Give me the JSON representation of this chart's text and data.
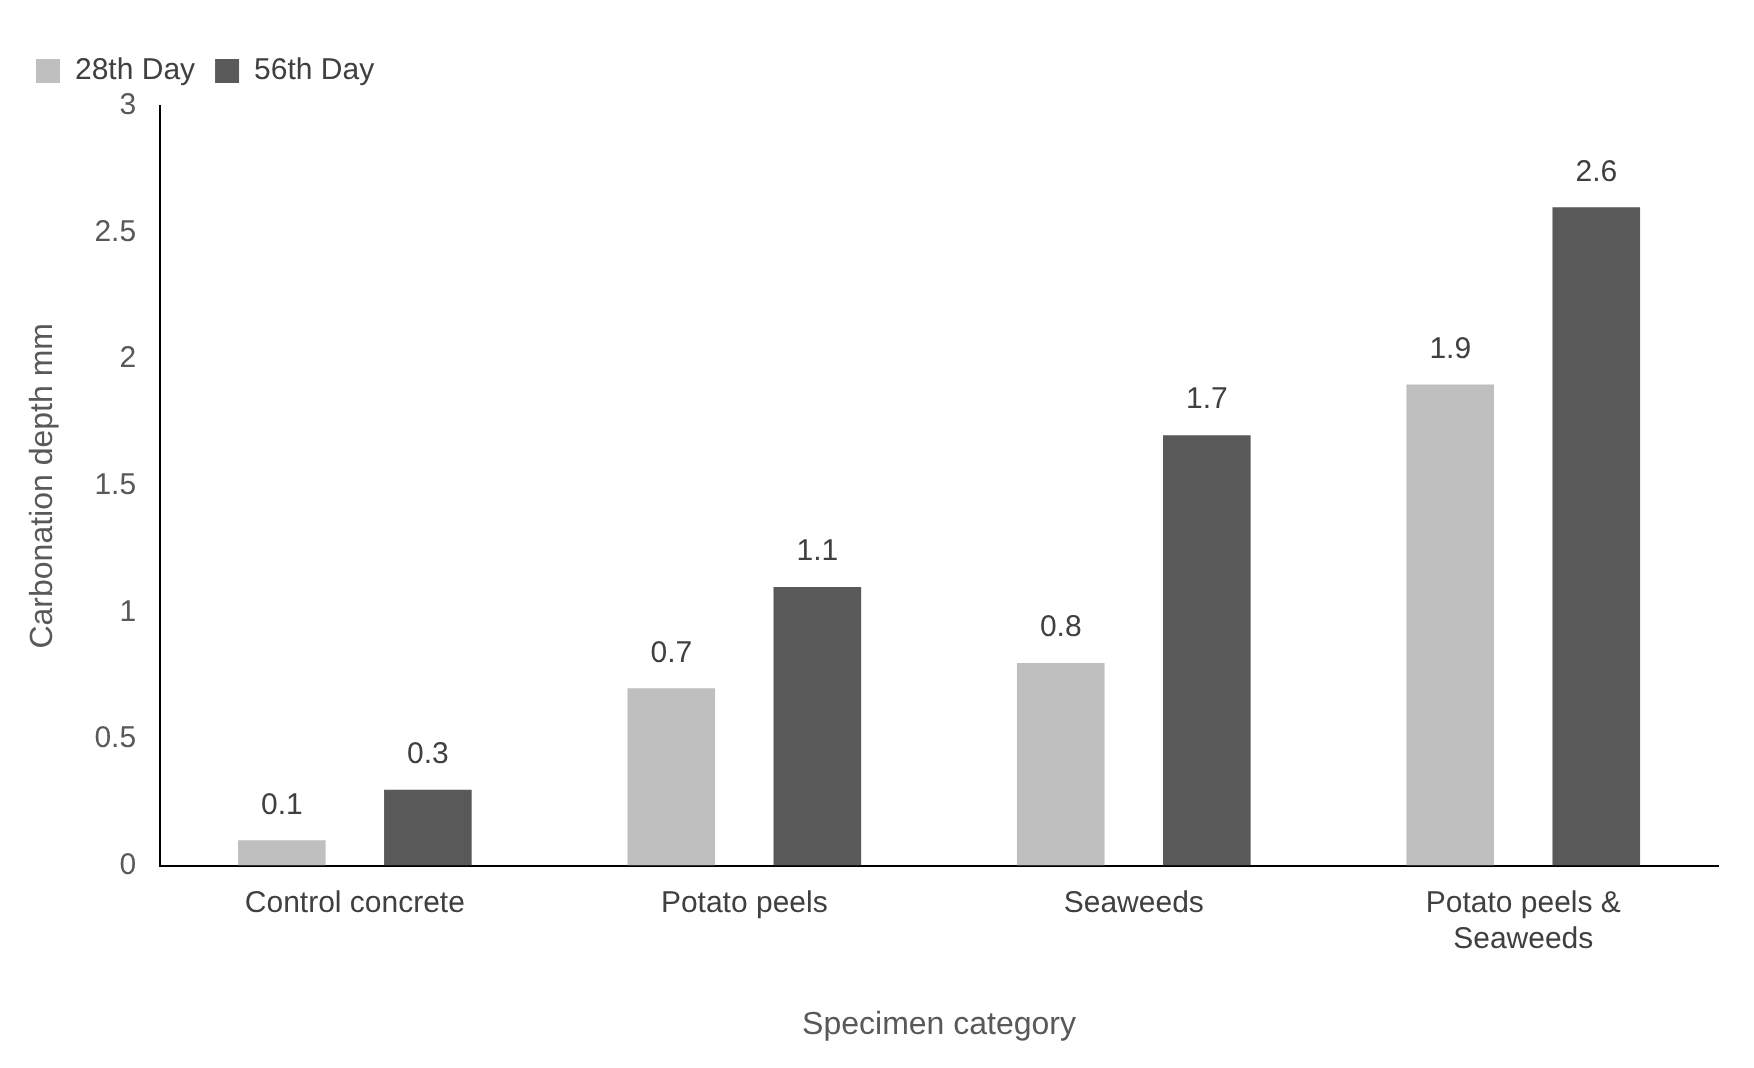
{
  "chart_data": {
    "type": "bar",
    "xlabel": "Specimen category",
    "ylabel": "Carbonation depth mm",
    "categories": [
      "Control concrete",
      "Potato peels",
      "Seaweeds",
      "Potato peels & Seaweeds"
    ],
    "series": [
      {
        "name": "28th Day",
        "color": "#bfbfbf",
        "values": [
          0.1,
          0.7,
          0.8,
          1.9
        ]
      },
      {
        "name": "56th Day",
        "color": "#595959",
        "values": [
          0.3,
          1.1,
          1.7,
          2.6
        ]
      }
    ],
    "ylim": [
      0,
      3
    ],
    "yticks": [
      0,
      0.5,
      1,
      1.5,
      2,
      2.5,
      3
    ],
    "grid": false,
    "legend": "top left",
    "data_labels": true
  }
}
